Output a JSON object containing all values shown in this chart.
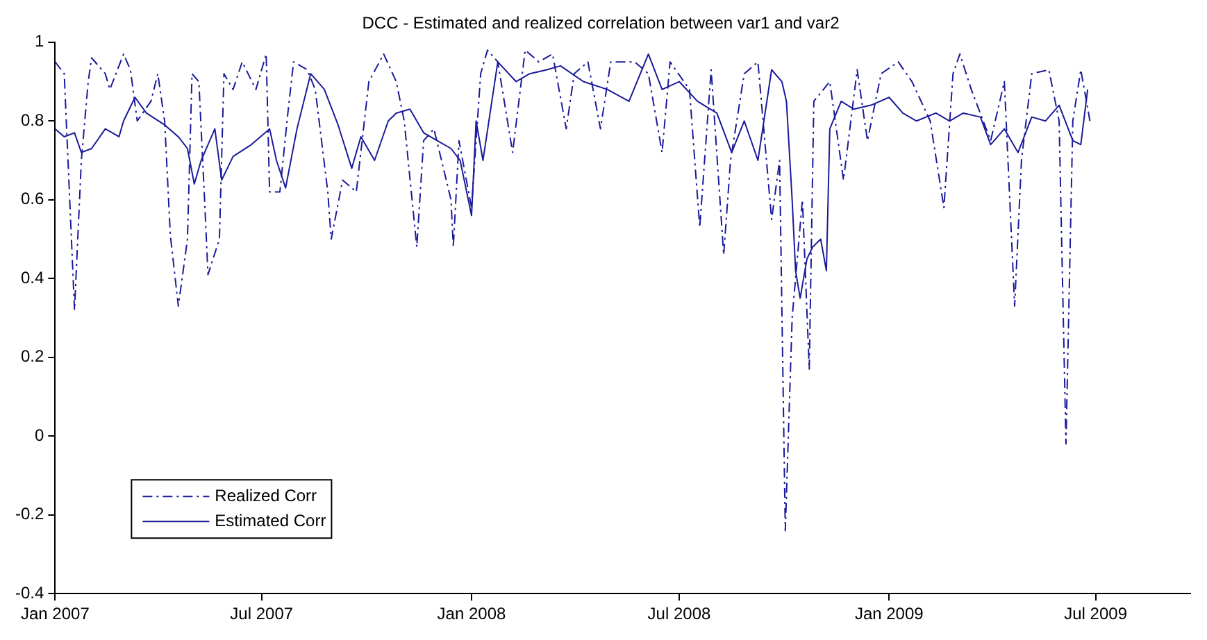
{
  "chart_data": {
    "type": "line",
    "title": "DCC - Estimated and realized correlation between var1 and var2",
    "xlim": [
      "2007-01-01",
      "2009-09-22"
    ],
    "xticks": [
      {
        "value": "2007-01-01",
        "label": "Jan 2007"
      },
      {
        "value": "2007-07-01",
        "label": "Jul 2007"
      },
      {
        "value": "2008-01-01",
        "label": "Jan 2008"
      },
      {
        "value": "2008-07-01",
        "label": "Jul 2008"
      },
      {
        "value": "2009-01-01",
        "label": "Jan 2009"
      },
      {
        "value": "2009-07-01",
        "label": "Jul 2009"
      }
    ],
    "ylim": [
      -0.4,
      1
    ],
    "yticks": [
      -0.4,
      -0.2,
      0,
      0.2,
      0.4,
      0.6,
      0.8,
      1
    ],
    "legend": "bottom left",
    "marker": "none",
    "series": [
      {
        "name": "Realized Corr",
        "color": "#1a1a9a",
        "line_style": "dashed",
        "x": [
          "2007-01-01",
          "2007-01-09",
          "2007-01-18",
          "2007-01-24",
          "2007-01-30",
          "2007-02-02",
          "2007-02-14",
          "2007-02-18",
          "2007-03-02",
          "2007-03-08",
          "2007-03-14",
          "2007-03-26",
          "2007-04-01",
          "2007-04-07",
          "2007-04-12",
          "2007-04-19",
          "2007-04-27",
          "2007-05-01",
          "2007-05-07",
          "2007-05-12",
          "2007-05-15",
          "2007-05-25",
          "2007-05-29",
          "2007-06-06",
          "2007-06-14",
          "2007-06-26",
          "2007-07-05",
          "2007-07-08",
          "2007-07-17",
          "2007-07-24",
          "2007-07-29",
          "2007-08-10",
          "2007-08-17",
          "2007-08-28",
          "2007-08-31",
          "2007-09-10",
          "2007-09-22",
          "2007-10-03",
          "2007-10-16",
          "2007-10-27",
          "2007-11-03",
          "2007-11-14",
          "2007-11-20",
          "2007-11-29",
          "2007-12-14",
          "2007-12-16",
          "2007-12-21",
          "2008-01-01",
          "2008-01-09",
          "2008-01-15",
          "2008-01-24",
          "2008-02-06",
          "2008-02-17",
          "2008-02-29",
          "2008-03-12",
          "2008-03-24",
          "2008-03-31",
          "2008-04-12",
          "2008-04-23",
          "2008-05-02",
          "2008-05-23",
          "2008-06-04",
          "2008-06-16",
          "2008-06-23",
          "2008-07-10",
          "2008-07-19",
          "2008-07-29",
          "2008-08-09",
          "2008-08-15",
          "2008-08-27",
          "2008-09-08",
          "2008-09-20",
          "2008-09-27",
          "2008-10-02",
          "2008-10-08",
          "2008-10-11",
          "2008-10-17",
          "2008-10-23",
          "2008-10-27",
          "2008-11-10",
          "2008-11-22",
          "2008-12-04",
          "2008-12-13",
          "2008-12-25",
          "2009-01-09",
          "2009-01-21",
          "2009-02-06",
          "2009-02-18",
          "2009-02-26",
          "2009-03-04",
          "2009-03-14",
          "2009-03-31",
          "2009-04-12",
          "2009-04-21",
          "2009-04-27",
          "2009-05-06",
          "2009-05-21",
          "2009-05-30",
          "2009-06-05",
          "2009-06-11",
          "2009-06-18",
          "2009-06-26"
        ],
        "values": [
          0.95,
          0.92,
          0.32,
          0.7,
          0.9,
          0.96,
          0.92,
          0.88,
          0.97,
          0.93,
          0.8,
          0.85,
          0.92,
          0.8,
          0.51,
          0.33,
          0.5,
          0.92,
          0.9,
          0.6,
          0.41,
          0.5,
          0.92,
          0.88,
          0.95,
          0.88,
          0.97,
          0.62,
          0.62,
          0.82,
          0.95,
          0.93,
          0.88,
          0.62,
          0.5,
          0.65,
          0.62,
          0.9,
          0.97,
          0.9,
          0.8,
          0.48,
          0.75,
          0.78,
          0.6,
          0.48,
          0.75,
          0.58,
          0.92,
          0.98,
          0.95,
          0.72,
          0.98,
          0.95,
          0.97,
          0.78,
          0.92,
          0.95,
          0.78,
          0.95,
          0.95,
          0.92,
          0.72,
          0.95,
          0.88,
          0.53,
          0.93,
          0.46,
          0.7,
          0.92,
          0.95,
          0.55,
          0.7,
          -0.24,
          0.3,
          0.4,
          0.6,
          0.17,
          0.85,
          0.9,
          0.65,
          0.93,
          0.75,
          0.92,
          0.95,
          0.9,
          0.8,
          0.58,
          0.92,
          0.97,
          0.88,
          0.75,
          0.9,
          0.33,
          0.7,
          0.92,
          0.93,
          0.8,
          -0.02,
          0.8,
          0.93,
          0.8
        ]
      },
      {
        "name": "Estimated Corr",
        "color": "#1a1a9a",
        "line_style": "solid",
        "x": [
          "2007-01-01",
          "2007-01-09",
          "2007-01-18",
          "2007-01-24",
          "2007-02-02",
          "2007-02-14",
          "2007-02-26",
          "2007-03-02",
          "2007-03-12",
          "2007-03-22",
          "2007-04-07",
          "2007-04-19",
          "2007-04-27",
          "2007-05-03",
          "2007-05-09",
          "2007-05-21",
          "2007-05-27",
          "2007-06-06",
          "2007-06-22",
          "2007-07-08",
          "2007-07-14",
          "2007-07-22",
          "2007-08-01",
          "2007-08-13",
          "2007-08-25",
          "2007-09-06",
          "2007-09-18",
          "2007-09-26",
          "2007-10-08",
          "2007-10-20",
          "2007-10-27",
          "2007-11-08",
          "2007-11-20",
          "2007-12-02",
          "2007-12-14",
          "2007-12-22",
          "2008-01-01",
          "2008-01-05",
          "2008-01-11",
          "2008-01-24",
          "2008-02-09",
          "2008-02-21",
          "2008-03-07",
          "2008-03-19",
          "2008-04-08",
          "2008-04-29",
          "2008-05-18",
          "2008-06-04",
          "2008-06-16",
          "2008-07-01",
          "2008-07-17",
          "2008-08-03",
          "2008-08-16",
          "2008-08-27",
          "2008-09-08",
          "2008-09-20",
          "2008-09-29",
          "2008-10-03",
          "2008-10-08",
          "2008-10-11",
          "2008-10-15",
          "2008-10-21",
          "2008-10-26",
          "2008-11-02",
          "2008-11-07",
          "2008-11-10",
          "2008-11-20",
          "2008-12-01",
          "2008-12-16",
          "2009-01-01",
          "2009-01-13",
          "2009-01-25",
          "2009-02-11",
          "2009-02-23",
          "2009-03-07",
          "2009-03-22",
          "2009-03-31",
          "2009-04-12",
          "2009-04-24",
          "2009-05-06",
          "2009-05-18",
          "2009-05-30",
          "2009-06-11",
          "2009-06-18",
          "2009-06-24"
        ],
        "values": [
          0.78,
          0.76,
          0.77,
          0.72,
          0.73,
          0.78,
          0.76,
          0.8,
          0.86,
          0.82,
          0.79,
          0.76,
          0.73,
          0.64,
          0.7,
          0.78,
          0.65,
          0.71,
          0.74,
          0.78,
          0.7,
          0.63,
          0.78,
          0.92,
          0.88,
          0.79,
          0.68,
          0.76,
          0.7,
          0.8,
          0.82,
          0.83,
          0.77,
          0.75,
          0.73,
          0.7,
          0.56,
          0.8,
          0.7,
          0.95,
          0.9,
          0.92,
          0.93,
          0.94,
          0.9,
          0.88,
          0.85,
          0.97,
          0.88,
          0.9,
          0.85,
          0.82,
          0.72,
          0.8,
          0.7,
          0.93,
          0.9,
          0.85,
          0.6,
          0.42,
          0.35,
          0.45,
          0.48,
          0.5,
          0.42,
          0.78,
          0.85,
          0.83,
          0.84,
          0.86,
          0.82,
          0.8,
          0.82,
          0.8,
          0.82,
          0.81,
          0.74,
          0.78,
          0.72,
          0.81,
          0.8,
          0.84,
          0.75,
          0.74,
          0.88
        ]
      }
    ]
  }
}
